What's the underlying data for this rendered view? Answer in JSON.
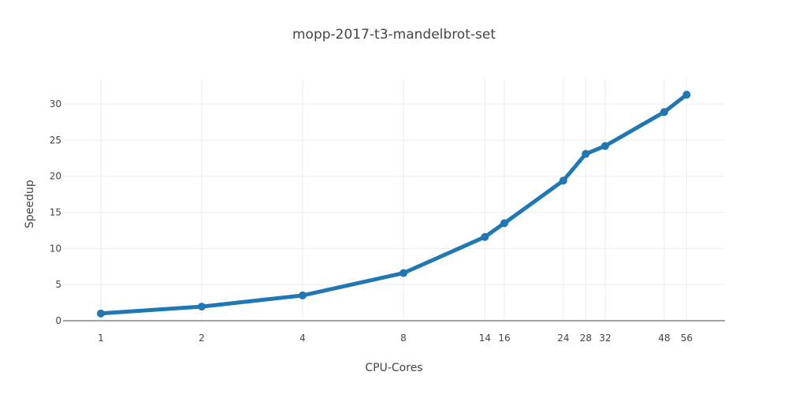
{
  "chart_data": {
    "type": "line",
    "title": "mopp-2017-t3-mandelbrot-set",
    "xlabel": "CPU-Cores",
    "ylabel": "Speedup",
    "x_scale": "log2",
    "x_ticks": [
      1,
      2,
      4,
      8,
      14,
      16,
      24,
      28,
      32,
      48,
      56
    ],
    "y_ticks": [
      0,
      5,
      10,
      15,
      20,
      25,
      30
    ],
    "ylim": [
      0,
      33.5
    ],
    "grid": true,
    "series": [
      {
        "color": "#1f77b4",
        "x": [
          1,
          2,
          4,
          8,
          14,
          16,
          24,
          28,
          32,
          48,
          56
        ],
        "y": [
          1.0,
          1.95,
          3.5,
          6.6,
          11.6,
          13.5,
          19.4,
          23.1,
          24.2,
          28.9,
          31.3
        ]
      }
    ]
  }
}
